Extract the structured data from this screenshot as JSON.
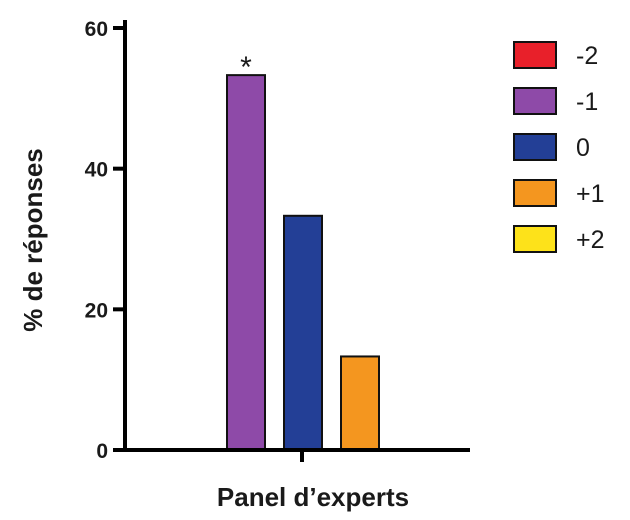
{
  "chart_data": {
    "type": "bar",
    "title": "",
    "xlabel": "Panel d’experts",
    "ylabel": "% de réponses",
    "ylim": [
      0,
      60
    ],
    "yticks": [
      "0",
      "20",
      "40",
      "60"
    ],
    "categories": [
      "Panel d’experts"
    ],
    "series": [
      {
        "name": "-2",
        "values": [
          0
        ],
        "color": "#e8202a"
      },
      {
        "name": "-1",
        "values": [
          53.3
        ],
        "color": "#8e4aa8"
      },
      {
        "name": "0",
        "values": [
          33.3
        ],
        "color": "#233f96"
      },
      {
        "name": "+1",
        "values": [
          13.3
        ],
        "color": "#f4961f"
      },
      {
        "name": "+2",
        "values": [
          0
        ],
        "color": "#fde21a"
      }
    ],
    "annotations": [
      {
        "text": "*",
        "series": "-1"
      }
    ],
    "legend_position": "right",
    "grid": false
  }
}
